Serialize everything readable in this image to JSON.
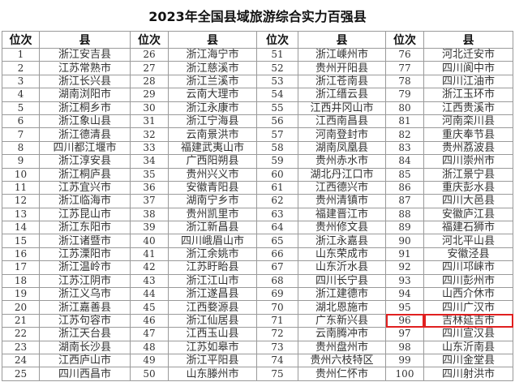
{
  "title": "2023年全国县域旅游综合实力百强县",
  "headers": {
    "rank": "位次",
    "county": "县"
  },
  "highlight_rank": "96",
  "highlight_color": "#e02020",
  "rows": [
    [
      [
        "1",
        "浙江安吉县"
      ],
      [
        "26",
        "浙江海宁市"
      ],
      [
        "51",
        "浙江嵊州市"
      ],
      [
        "76",
        "河北迁安市"
      ]
    ],
    [
      [
        "2",
        "江苏常熟市"
      ],
      [
        "27",
        "浙江慈溪市"
      ],
      [
        "52",
        "贵州开阳县"
      ],
      [
        "77",
        "四川阆中市"
      ]
    ],
    [
      [
        "3",
        "浙江长兴县"
      ],
      [
        "28",
        "浙江兰溪市"
      ],
      [
        "53",
        "浙江苍南县"
      ],
      [
        "78",
        "四川江油市"
      ]
    ],
    [
      [
        "4",
        "湖南浏阳市"
      ],
      [
        "29",
        "云南大理市"
      ],
      [
        "54",
        "浙江缙云县"
      ],
      [
        "79",
        "浙江玉环市"
      ]
    ],
    [
      [
        "5",
        "浙江桐乡市"
      ],
      [
        "30",
        "浙江永康市"
      ],
      [
        "55",
        "江西井冈山市"
      ],
      [
        "80",
        "江西贵溪市"
      ]
    ],
    [
      [
        "6",
        "浙江象山县"
      ],
      [
        "31",
        "浙江宁海县"
      ],
      [
        "56",
        "江西南昌县"
      ],
      [
        "81",
        "河南栾川县"
      ]
    ],
    [
      [
        "7",
        "浙江德清县"
      ],
      [
        "32",
        "云南景洪市"
      ],
      [
        "57",
        "河南登封市"
      ],
      [
        "82",
        "重庆奉节县"
      ]
    ],
    [
      [
        "8",
        "四川都江堰市"
      ],
      [
        "33",
        "福建武夷山市"
      ],
      [
        "58",
        "湖南凤凰县"
      ],
      [
        "83",
        "贵州荔波县"
      ]
    ],
    [
      [
        "9",
        "浙江淳安县"
      ],
      [
        "34",
        "广西阳朔县"
      ],
      [
        "59",
        "贵州赤水市"
      ],
      [
        "84",
        "四川崇州市"
      ]
    ],
    [
      [
        "10",
        "浙江桐庐县"
      ],
      [
        "35",
        "贵州兴义市"
      ],
      [
        "60",
        "湖北丹江口市"
      ],
      [
        "85",
        "浙江景宁县"
      ]
    ],
    [
      [
        "11",
        "江苏宜兴市"
      ],
      [
        "36",
        "安徽青阳县"
      ],
      [
        "61",
        "江西德兴市"
      ],
      [
        "86",
        "重庆彭水县"
      ]
    ],
    [
      [
        "12",
        "浙江临海市"
      ],
      [
        "37",
        "湖南宁乡市"
      ],
      [
        "62",
        "贵州清镇市"
      ],
      [
        "87",
        "四川大邑县"
      ]
    ],
    [
      [
        "13",
        "江苏昆山市"
      ],
      [
        "38",
        "贵州凯里市"
      ],
      [
        "63",
        "福建晋江市"
      ],
      [
        "88",
        "安徽庐江县"
      ]
    ],
    [
      [
        "14",
        "浙江东阳市"
      ],
      [
        "39",
        "浙江新昌县"
      ],
      [
        "64",
        "贵州修文县"
      ],
      [
        "89",
        "福建石狮市"
      ]
    ],
    [
      [
        "15",
        "浙江诸暨市"
      ],
      [
        "40",
        "四川峨眉山市"
      ],
      [
        "65",
        "浙江永嘉县"
      ],
      [
        "90",
        "河北平山县"
      ]
    ],
    [
      [
        "16",
        "江苏溧阳市"
      ],
      [
        "41",
        "浙江余姚市"
      ],
      [
        "66",
        "山东荣成市"
      ],
      [
        "91",
        "安徽泾县"
      ]
    ],
    [
      [
        "17",
        "浙江温岭市"
      ],
      [
        "42",
        "江苏盱眙县"
      ],
      [
        "67",
        "山东沂水县"
      ],
      [
        "92",
        "四川邛崃市"
      ]
    ],
    [
      [
        "18",
        "江苏江阴市"
      ],
      [
        "43",
        "浙江江山市"
      ],
      [
        "68",
        "四川长宁县"
      ],
      [
        "93",
        "四川彭州市"
      ]
    ],
    [
      [
        "19",
        "浙江义乌市"
      ],
      [
        "44",
        "浙江遂昌县"
      ],
      [
        "69",
        "浙江建德市"
      ],
      [
        "94",
        "山西介休市"
      ]
    ],
    [
      [
        "20",
        "浙江嘉善县"
      ],
      [
        "45",
        "江西婺源县"
      ],
      [
        "70",
        "湖北恩施市"
      ],
      [
        "95",
        "四川广汉市"
      ]
    ],
    [
      [
        "21",
        "江苏句容市"
      ],
      [
        "46",
        "浙江仙居县"
      ],
      [
        "71",
        "广东新兴县"
      ],
      [
        "96",
        "吉林延吉市"
      ]
    ],
    [
      [
        "22",
        "浙江天台县"
      ],
      [
        "47",
        "江西玉山县"
      ],
      [
        "72",
        "云南腾冲市"
      ],
      [
        "97",
        "四川宣汉县"
      ]
    ],
    [
      [
        "23",
        "湖南长沙县"
      ],
      [
        "48",
        "江苏如皋市"
      ],
      [
        "73",
        "贵州盘州市"
      ],
      [
        "98",
        "山东沂南县"
      ]
    ],
    [
      [
        "24",
        "江西庐山市"
      ],
      [
        "49",
        "浙江平阳县"
      ],
      [
        "74",
        "贵州六枝特区"
      ],
      [
        "99",
        "四川金堂县"
      ]
    ],
    [
      [
        "25",
        "四川西昌市"
      ],
      [
        "50",
        "山东滕州市"
      ],
      [
        "75",
        "贵州仁怀市"
      ],
      [
        "100",
        "四川射洪市"
      ]
    ]
  ]
}
